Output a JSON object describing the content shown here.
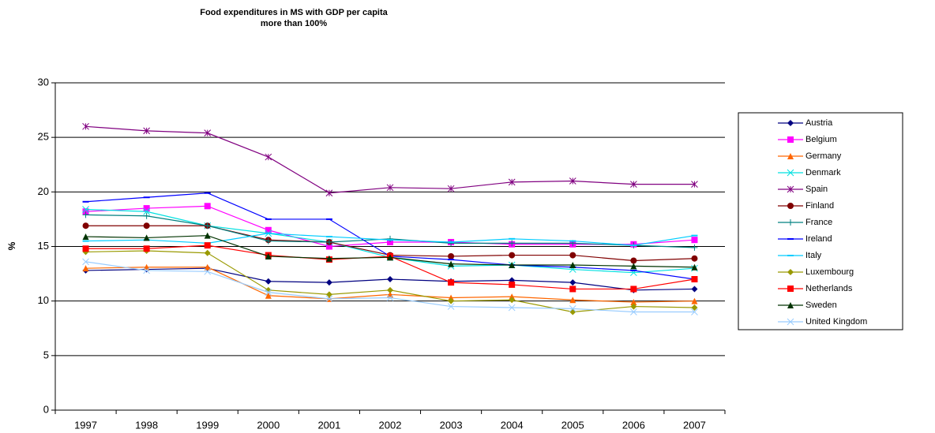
{
  "chart_data": {
    "type": "line",
    "title": [
      "Food expenditures in MS with GDP per capita",
      "more than 100%"
    ],
    "y_label": "%",
    "categories": [
      "1997",
      "1998",
      "1999",
      "2000",
      "2001",
      "2002",
      "2003",
      "2004",
      "2005",
      "2006",
      "2007"
    ],
    "ylim": [
      0,
      30
    ],
    "yticks": [
      0,
      5,
      10,
      15,
      20,
      25,
      30
    ],
    "grid": true,
    "legend": "right",
    "series": [
      {
        "name": "Austria",
        "color": "#000080",
        "marker": "diamond",
        "values": [
          12.8,
          12.9,
          13.0,
          11.8,
          11.7,
          12.0,
          11.8,
          11.9,
          11.7,
          11.0,
          11.1
        ]
      },
      {
        "name": "Belgium",
        "color": "#ff00ff",
        "marker": "square",
        "values": [
          18.2,
          18.5,
          18.7,
          16.5,
          15.0,
          15.4,
          15.4,
          15.2,
          15.2,
          15.2,
          15.6
        ]
      },
      {
        "name": "Germany",
        "color": "#ff6600",
        "marker": "triangle",
        "values": [
          13.0,
          13.1,
          13.1,
          10.5,
          10.2,
          10.6,
          10.3,
          10.4,
          10.1,
          9.9,
          10.0
        ]
      },
      {
        "name": "Denmark",
        "color": "#00e0e0",
        "marker": "x",
        "values": [
          18.4,
          18.2,
          16.9,
          16.2,
          15.4,
          14.0,
          13.2,
          13.3,
          12.9,
          12.6,
          13.0
        ]
      },
      {
        "name": "Spain",
        "color": "#800080",
        "marker": "star",
        "values": [
          26.0,
          25.6,
          25.4,
          23.2,
          19.9,
          20.4,
          20.3,
          20.9,
          21.0,
          20.7,
          20.7
        ]
      },
      {
        "name": "Finland",
        "color": "#800000",
        "marker": "circle",
        "values": [
          16.9,
          16.9,
          16.9,
          15.6,
          15.4,
          14.2,
          14.1,
          14.2,
          14.2,
          13.7,
          13.9
        ]
      },
      {
        "name": "France",
        "color": "#008080",
        "marker": "plus",
        "values": [
          17.9,
          17.8,
          16.9,
          15.5,
          15.4,
          15.7,
          15.3,
          15.3,
          15.3,
          15.1,
          14.9
        ]
      },
      {
        "name": "Ireland",
        "color": "#0000ff",
        "marker": "dash",
        "values": [
          19.1,
          19.5,
          19.9,
          17.5,
          17.5,
          14.1,
          13.8,
          13.3,
          13.1,
          12.8,
          12.0
        ]
      },
      {
        "name": "Italy",
        "color": "#00ccff",
        "marker": "dash",
        "values": [
          15.5,
          15.6,
          15.3,
          16.2,
          15.9,
          15.6,
          15.4,
          15.7,
          15.5,
          15.1,
          16.0
        ]
      },
      {
        "name": "Luxembourg",
        "color": "#999900",
        "marker": "diamond",
        "values": [
          14.5,
          14.6,
          14.4,
          11.0,
          10.6,
          11.0,
          10.0,
          10.1,
          9.0,
          9.5,
          9.4
        ]
      },
      {
        "name": "Netherlands",
        "color": "#ff0000",
        "marker": "square",
        "values": [
          14.8,
          14.8,
          15.1,
          14.2,
          13.8,
          14.1,
          11.7,
          11.5,
          11.1,
          11.1,
          12.0
        ]
      },
      {
        "name": "Sweden",
        "color": "#003300",
        "marker": "triangle",
        "values": [
          15.9,
          15.8,
          16.0,
          14.1,
          13.9,
          14.0,
          13.4,
          13.3,
          13.3,
          13.2,
          13.1
        ]
      },
      {
        "name": "United Kingdom",
        "color": "#99ccff",
        "marker": "x",
        "values": [
          13.6,
          12.8,
          12.7,
          10.8,
          10.2,
          10.3,
          9.5,
          9.4,
          9.3,
          9.0,
          9.0
        ]
      }
    ]
  }
}
